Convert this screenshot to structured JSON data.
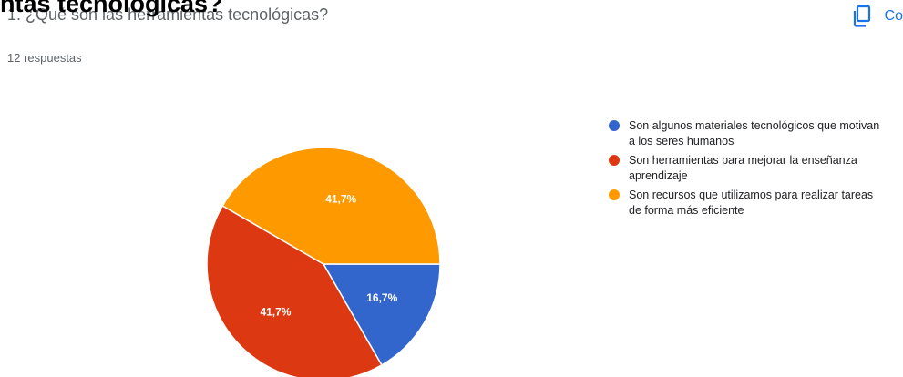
{
  "header": {
    "overlay_title": "ntas tecnológicas?",
    "question": "1. ¿Qué son las herramientas tecnológicas?",
    "responses": "12 respuestas",
    "copy_label": "Co"
  },
  "colors": {
    "accent": "#1a73e8"
  },
  "icons": {
    "copy": "copy-icon"
  },
  "chart_data": {
    "type": "pie",
    "title": "",
    "slices": [
      {
        "label": "Son algunos materiales tecnológicos que motivan a los seres humanos",
        "value": 16.7,
        "display": "16,7%",
        "color": "#3366cc"
      },
      {
        "label": "Son herramientas para mejorar la enseñanza aprendizaje",
        "value": 41.7,
        "display": "41,7%",
        "color": "#dc3912"
      },
      {
        "label": "Son recursos que utilizamos para realizar tareas de forma más eficiente",
        "value": 41.7,
        "display": "41,7%",
        "color": "#ff9900"
      }
    ],
    "legend_position": "right"
  }
}
